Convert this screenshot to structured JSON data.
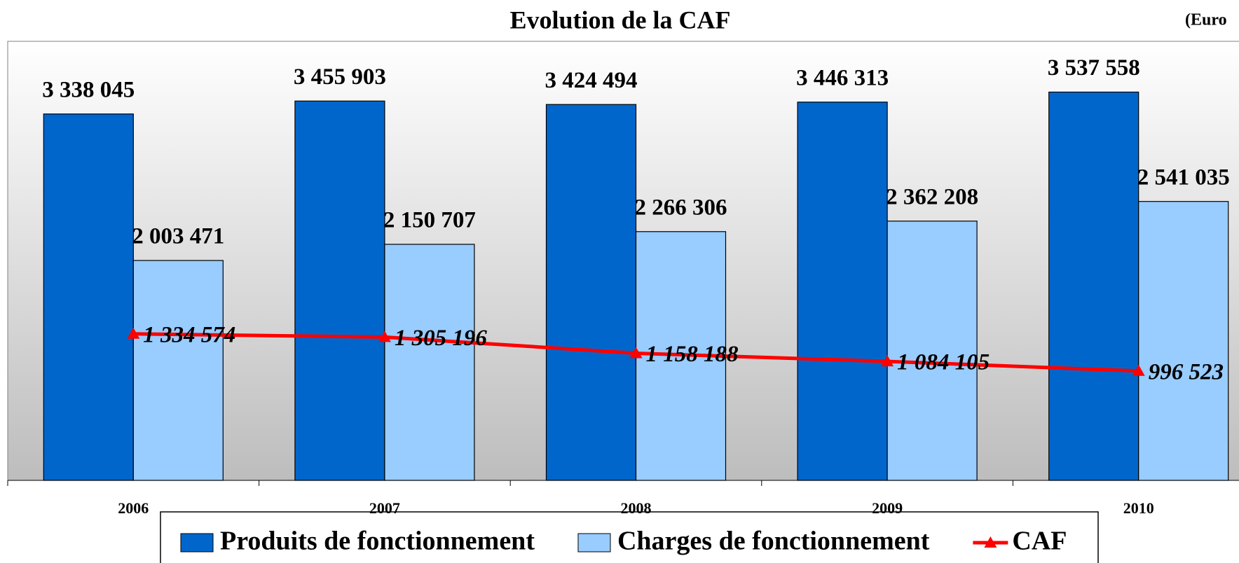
{
  "chart_data": {
    "type": "bar",
    "title": "Evolution de la CAF",
    "annotation": "(Euro",
    "categories": [
      "2006",
      "2007",
      "2008",
      "2009",
      "2010"
    ],
    "series": [
      {
        "name": "Produits de fonctionnement",
        "type": "bar",
        "color": "#0066cc",
        "values": [
          3338045,
          3455903,
          3424494,
          3446313,
          3537558
        ],
        "value_labels": [
          "3 338 045",
          "3 455 903",
          "3 424 494",
          "3 446 313",
          "3 537 558"
        ]
      },
      {
        "name": "Charges de fonctionnement",
        "type": "bar",
        "color": "#99ccff",
        "values": [
          2003471,
          2150707,
          2266306,
          2362208,
          2541035
        ],
        "value_labels": [
          "2 003 471",
          "2 150 707",
          "2 266 306",
          "2 362 208",
          "2 541 035"
        ]
      },
      {
        "name": "CAF",
        "type": "line",
        "color": "#ff0000",
        "values": [
          1334574,
          1305196,
          1158188,
          1084105,
          996523
        ],
        "value_labels": [
          "1 334 574",
          "1 305 196",
          "1 158 188",
          "1 084 105",
          "996 523"
        ]
      }
    ],
    "ylim": [
      0,
      4000000
    ]
  }
}
